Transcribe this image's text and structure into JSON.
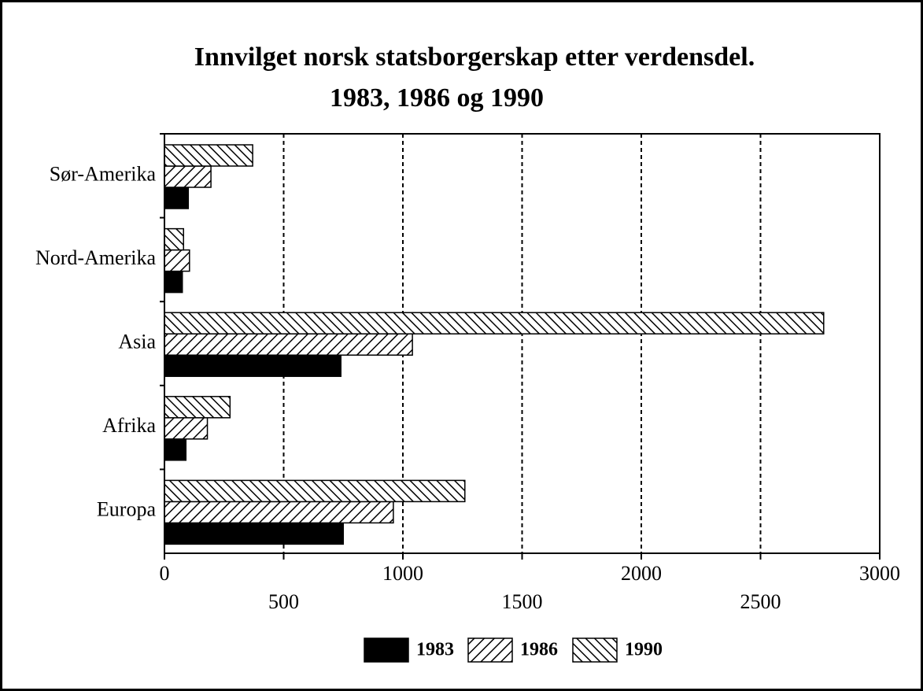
{
  "chart_data": {
    "type": "hbar",
    "title": [
      "Innvilget norsk statsborgerskap etter verdensdel.",
      "1983, 1986 og 1990"
    ],
    "categories": [
      "Europa",
      "Afrika",
      "Asia",
      "Nord-Amerika",
      "Sør-Amerika"
    ],
    "series": [
      {
        "name": "1983",
        "color": "#000000",
        "pattern": "solid",
        "values": [
          750,
          90,
          740,
          75,
          100
        ]
      },
      {
        "name": "1986",
        "color": "#000000",
        "pattern": "forward",
        "values": [
          960,
          180,
          1040,
          105,
          195
        ]
      },
      {
        "name": "1990",
        "color": "#000000",
        "pattern": "backward",
        "values": [
          1260,
          275,
          2765,
          80,
          370
        ]
      }
    ],
    "xlim": [
      0,
      3000
    ],
    "xticks": [
      0,
      500,
      1000,
      1500,
      2000,
      2500,
      3000
    ],
    "grid": true
  }
}
